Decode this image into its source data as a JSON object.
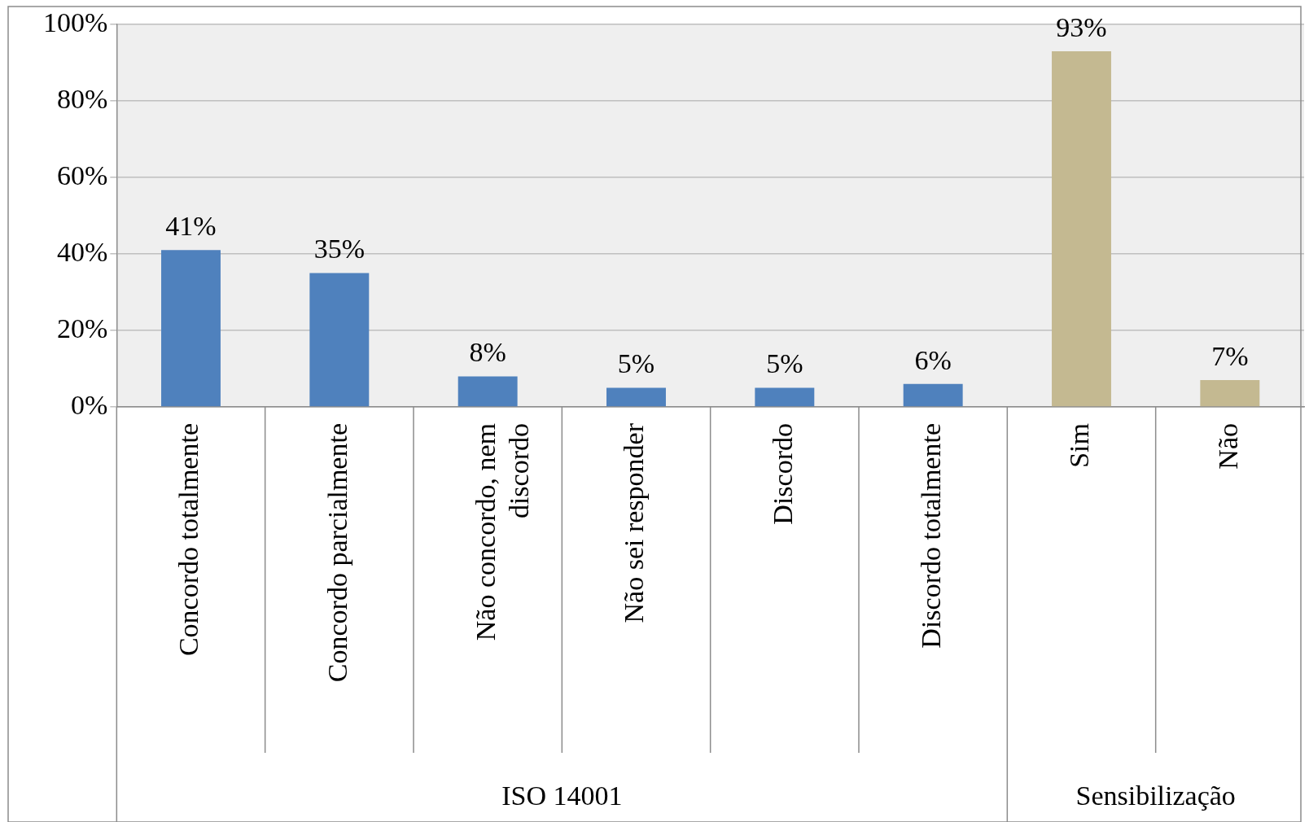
{
  "chart_data": {
    "type": "bar",
    "categories": [
      "Concordo totalmente",
      "Concordo parcialmente",
      "Não concordo, nem discordo",
      "Não sei responder",
      "Discordo",
      "Discordo totalmente",
      "Sim",
      "Não"
    ],
    "series": [
      {
        "color": "#4f81bd",
        "values": [
          41,
          35,
          8,
          5,
          5,
          6,
          null,
          null
        ],
        "value_labels": [
          "41%",
          "35%",
          "8%",
          "5%",
          "5%",
          "6%",
          null,
          null
        ]
      },
      {
        "color": "#c4b991",
        "values": [
          null,
          null,
          null,
          null,
          null,
          null,
          93,
          7
        ],
        "value_labels": [
          null,
          null,
          null,
          null,
          null,
          null,
          "93%",
          "7%"
        ]
      }
    ],
    "ylim": [
      0,
      100
    ],
    "yticks": [
      {
        "value": 0,
        "label": "0%"
      },
      {
        "value": 20,
        "label": "20%"
      },
      {
        "value": 40,
        "label": "40%"
      },
      {
        "value": 60,
        "label": "60%"
      },
      {
        "value": 80,
        "label": "80%"
      },
      {
        "value": 100,
        "label": "100%"
      }
    ],
    "annotations": [
      "ISO 14001",
      "Sensibilização"
    ],
    "grid": "y",
    "legend": false
  }
}
